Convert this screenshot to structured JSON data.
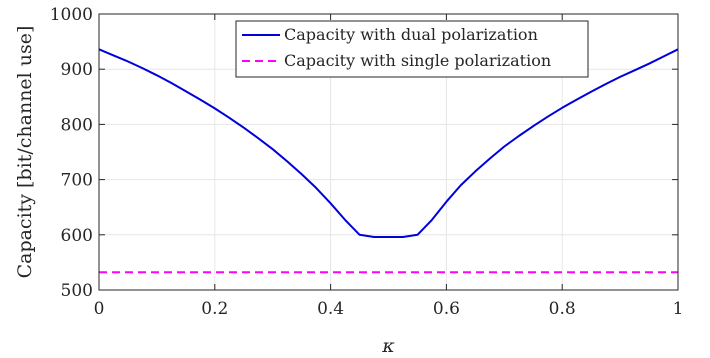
{
  "chart_data": {
    "type": "line",
    "xlabel": "κ",
    "ylabel": "Capacity [bit/channel use]",
    "xlim": [
      0,
      1
    ],
    "ylim": [
      500,
      1000
    ],
    "xticks": [
      0,
      0.2,
      0.4,
      0.6,
      0.8,
      1
    ],
    "xtick_labels": [
      "0",
      "0.2",
      "0.4",
      "0.6",
      "0.8",
      "1"
    ],
    "yticks": [
      500,
      600,
      700,
      800,
      900,
      1000
    ],
    "ytick_labels": [
      "500",
      "600",
      "700",
      "800",
      "900",
      "1000"
    ],
    "grid": true,
    "legend_position": "top-right",
    "series": [
      {
        "name": "Capacity with dual polarization",
        "color": "#0000dd",
        "style": "solid",
        "x": [
          0,
          0.025,
          0.05,
          0.075,
          0.1,
          0.125,
          0.15,
          0.175,
          0.2,
          0.225,
          0.25,
          0.275,
          0.3,
          0.325,
          0.35,
          0.375,
          0.4,
          0.425,
          0.45,
          0.475,
          0.5,
          0.525,
          0.55,
          0.575,
          0.6,
          0.625,
          0.65,
          0.675,
          0.7,
          0.725,
          0.75,
          0.775,
          0.8,
          0.825,
          0.85,
          0.875,
          0.9,
          0.925,
          0.95,
          0.975,
          1
        ],
        "y": [
          936,
          925,
          914,
          902,
          889,
          875,
          860,
          845,
          829,
          812,
          794,
          775,
          755,
          733,
          710,
          685,
          657,
          627,
          600,
          596,
          596,
          596,
          600,
          627,
          660,
          690,
          715,
          738,
          760,
          779,
          797,
          814,
          830,
          845,
          859,
          873,
          886,
          898,
          910,
          923,
          936
        ]
      },
      {
        "name": "Capacity with single polarization",
        "color": "#ff00ff",
        "style": "dashed",
        "x": [
          0,
          1
        ],
        "y": [
          532,
          532
        ]
      }
    ]
  }
}
